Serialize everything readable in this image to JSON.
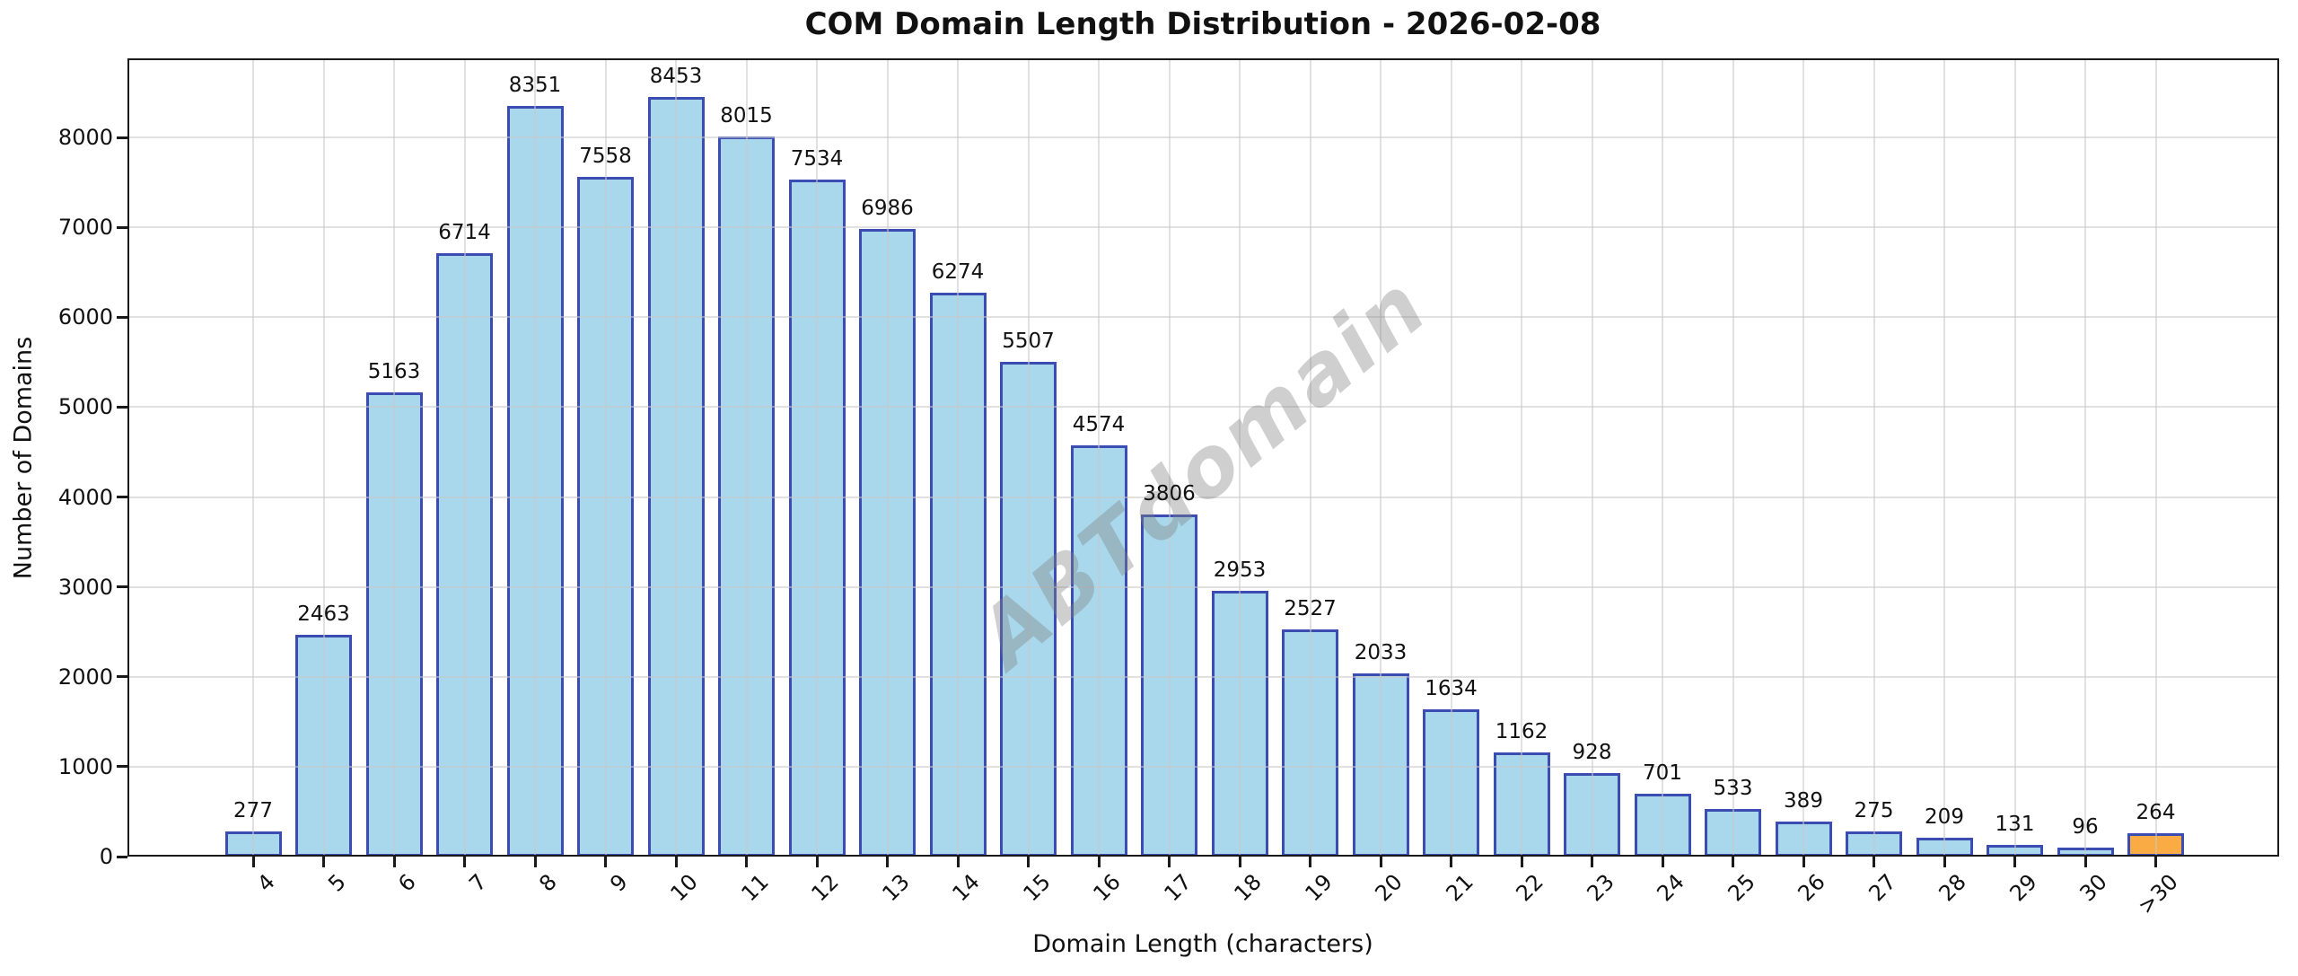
{
  "chart_data": {
    "type": "bar",
    "title": "COM Domain Length Distribution - 2026-02-08",
    "xlabel": "Domain Length (characters)",
    "ylabel": "Number of Domains",
    "categories": [
      "4",
      "5",
      "6",
      "7",
      "8",
      "9",
      "10",
      "11",
      "12",
      "13",
      "14",
      "15",
      "16",
      "17",
      "18",
      "19",
      "20",
      "21",
      "22",
      "23",
      "24",
      "25",
      "26",
      "27",
      "28",
      "29",
      "30",
      ">30"
    ],
    "values": [
      277,
      2463,
      5163,
      6714,
      8351,
      7558,
      8453,
      8015,
      7534,
      6986,
      6274,
      5507,
      4574,
      3806,
      2953,
      2527,
      2033,
      1634,
      1162,
      928,
      701,
      533,
      389,
      275,
      209,
      131,
      96,
      264
    ],
    "bar_color": "#A9D8EC",
    "bar_edge_color": "#3B4DB3",
    "highlight_index": 27,
    "highlight_color": "#FAAB43",
    "grid": true,
    "grid_color": "#E0E0E0",
    "ylim": [
      0,
      8881
    ],
    "yticks": [
      0,
      1000,
      2000,
      3000,
      4000,
      5000,
      6000,
      7000,
      8000
    ],
    "legend": "none",
    "watermark": "ABTdomain"
  }
}
